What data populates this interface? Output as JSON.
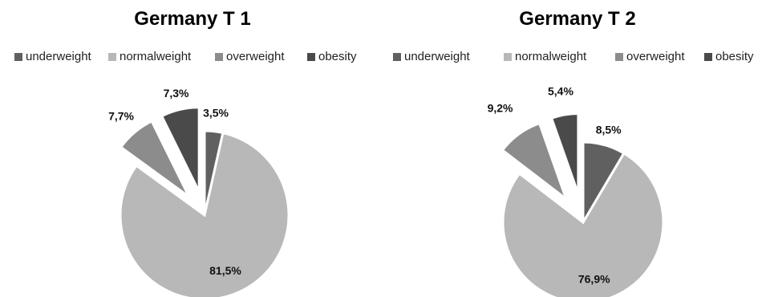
{
  "colors": {
    "underweight": "#606060",
    "normalweight": "#b8b8b8",
    "overweight": "#8c8c8c",
    "obesity": "#4a4a4a"
  },
  "chart_data": [
    {
      "type": "pie",
      "title": "Germany  T 1",
      "legend": [
        "underweight",
        "normalweight",
        "overweight",
        "obesity"
      ],
      "legend_position": "top",
      "series": [
        {
          "label": "underweight",
          "value": 3.5,
          "label_text": "3,5%"
        },
        {
          "label": "normalweight",
          "value": 81.5,
          "label_text": "81,5%"
        },
        {
          "label": "overweight",
          "value": 7.7,
          "label_text": "7,7%"
        },
        {
          "label": "obesity",
          "value": 7.3,
          "label_text": "7,3%"
        }
      ]
    },
    {
      "type": "pie",
      "title": "Germany T 2",
      "legend": [
        "underweight",
        "normalweight",
        "overweight",
        "obesity"
      ],
      "legend_position": "top",
      "series": [
        {
          "label": "underweight",
          "value": 8.5,
          "label_text": "8,5%"
        },
        {
          "label": "normalweight",
          "value": 76.9,
          "label_text": "76,9%"
        },
        {
          "label": "overweight",
          "value": 9.2,
          "label_text": "9,2%"
        },
        {
          "label": "obesity",
          "value": 5.4,
          "label_text": "5,4%"
        }
      ]
    }
  ]
}
